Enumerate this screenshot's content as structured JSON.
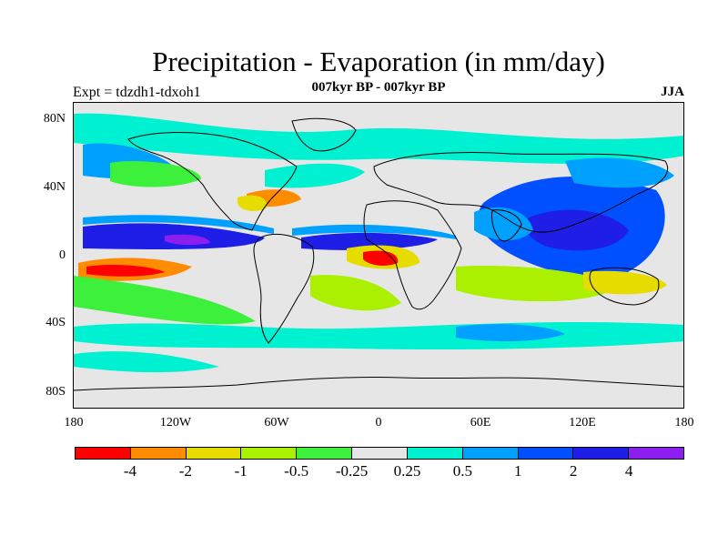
{
  "title": "Precipitation - Evaporation (in mm/day)",
  "subtitle": "007kyr BP - 007kyr BP",
  "experiment": "Expt = tdzdh1-tdxoh1",
  "season": "JJA",
  "map": {
    "lat_labels": [
      "80N",
      "40N",
      "0",
      "40S",
      "80S"
    ],
    "lon_labels": [
      "180",
      "120W",
      "60W",
      "0",
      "60E",
      "120E",
      "180"
    ],
    "lon_range": [
      -180,
      180
    ],
    "lat_range": [
      -90,
      90
    ],
    "background_color": "#e6e6e6"
  },
  "colorbar": {
    "colors": [
      "#ff0000",
      "#ff8c00",
      "#e6dc00",
      "#aaf000",
      "#3cf03c",
      "#e6e6e6",
      "#00f0d2",
      "#00a0ff",
      "#0050ff",
      "#1e1ee6",
      "#8c1ef0"
    ],
    "labels": [
      "-4",
      "-2",
      "-1",
      "-0.5",
      "-0.25",
      "0.25",
      "0.5",
      "1",
      "2",
      "4"
    ]
  }
}
